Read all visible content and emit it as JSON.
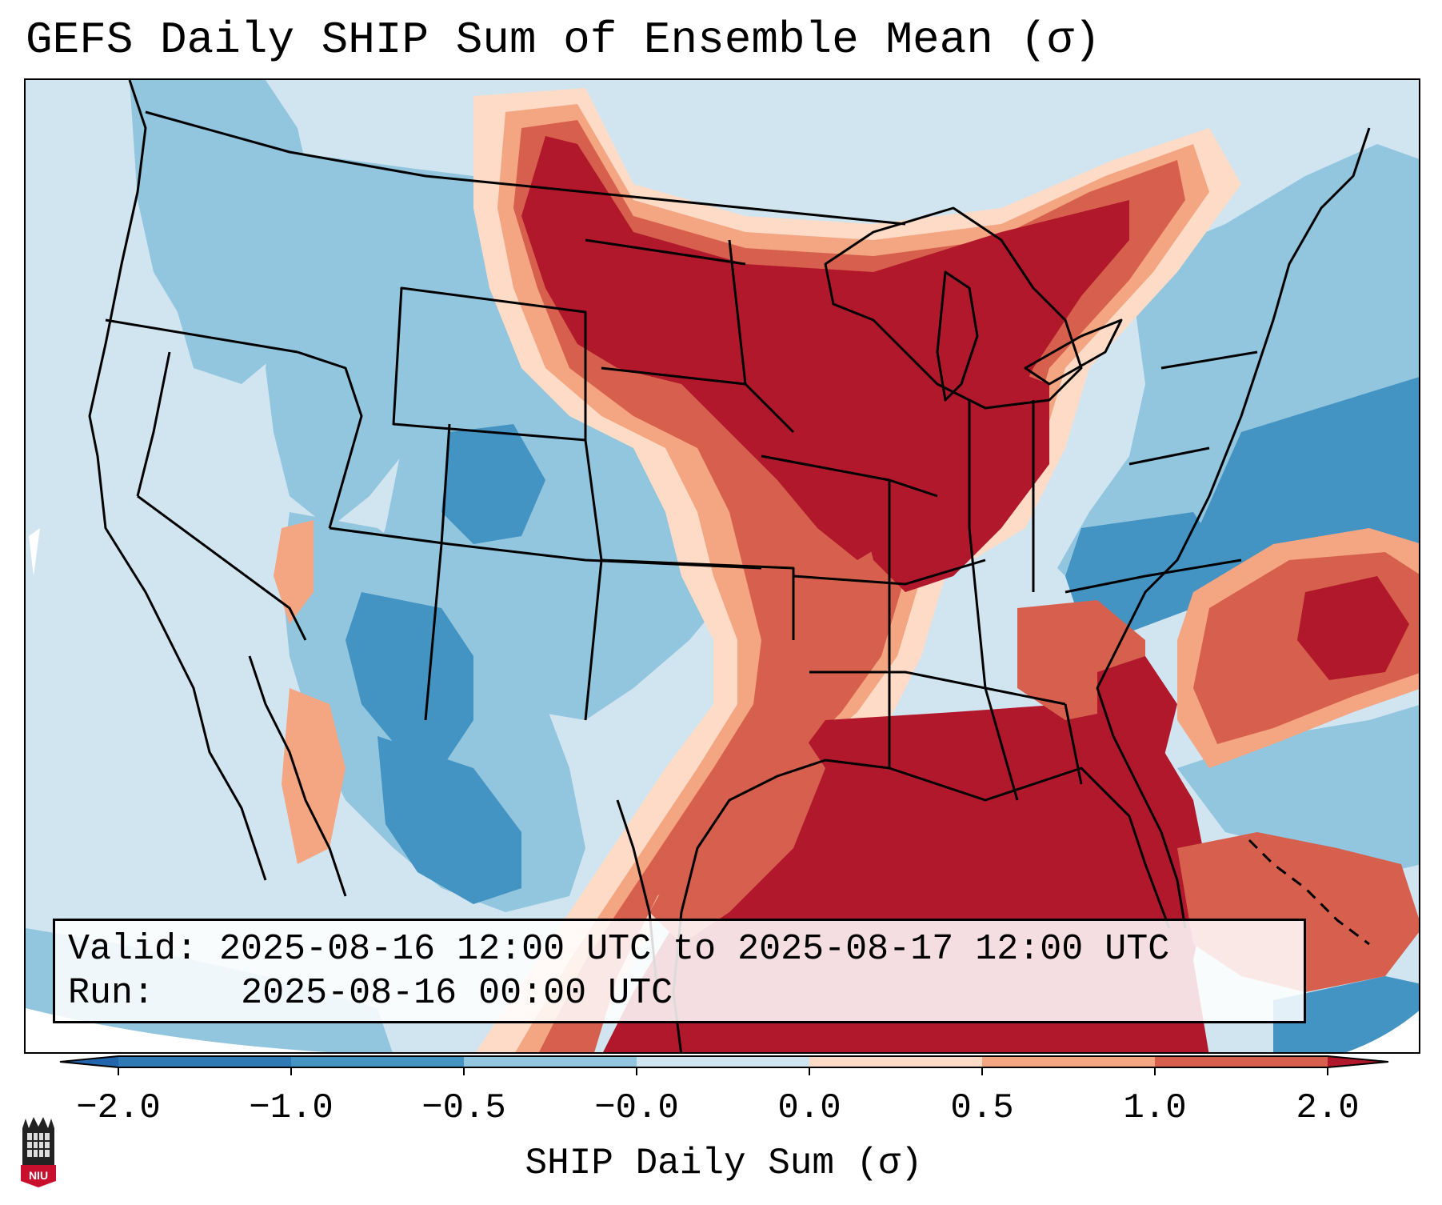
{
  "title": "GEFS Daily SHIP Sum of Ensemble Mean (σ)",
  "info": {
    "valid_label": "Valid:",
    "valid_value": "2025-08-16 12:00 UTC to 2025-08-17 12:00 UTC",
    "run_label": "Run:",
    "run_value": "2025-08-16 00:00 UTC"
  },
  "colorbar": {
    "label": "SHIP Daily Sum (σ)",
    "ticks": [
      "−2.0",
      "−1.0",
      "−0.5",
      "−0.0",
      "0.0",
      "0.5",
      "1.0",
      "2.0"
    ],
    "bins": [
      "#2f79b5",
      "#4393c3",
      "#92c5de",
      "#d1e5f0",
      "#fddbc7",
      "#f4a582",
      "#d6604d",
      "#b2182b"
    ],
    "under_color": "#2166ac",
    "over_color": "#b2182b"
  },
  "colors": {
    "ocean_neutral": "#d1e5f0",
    "light_blue": "#92c5de",
    "mid_blue": "#4393c3",
    "light_red": "#fddbc7",
    "salmon": "#f4a582",
    "red": "#d6604d",
    "dark_red": "#b2182b"
  },
  "logo": {
    "text": "NIU"
  }
}
